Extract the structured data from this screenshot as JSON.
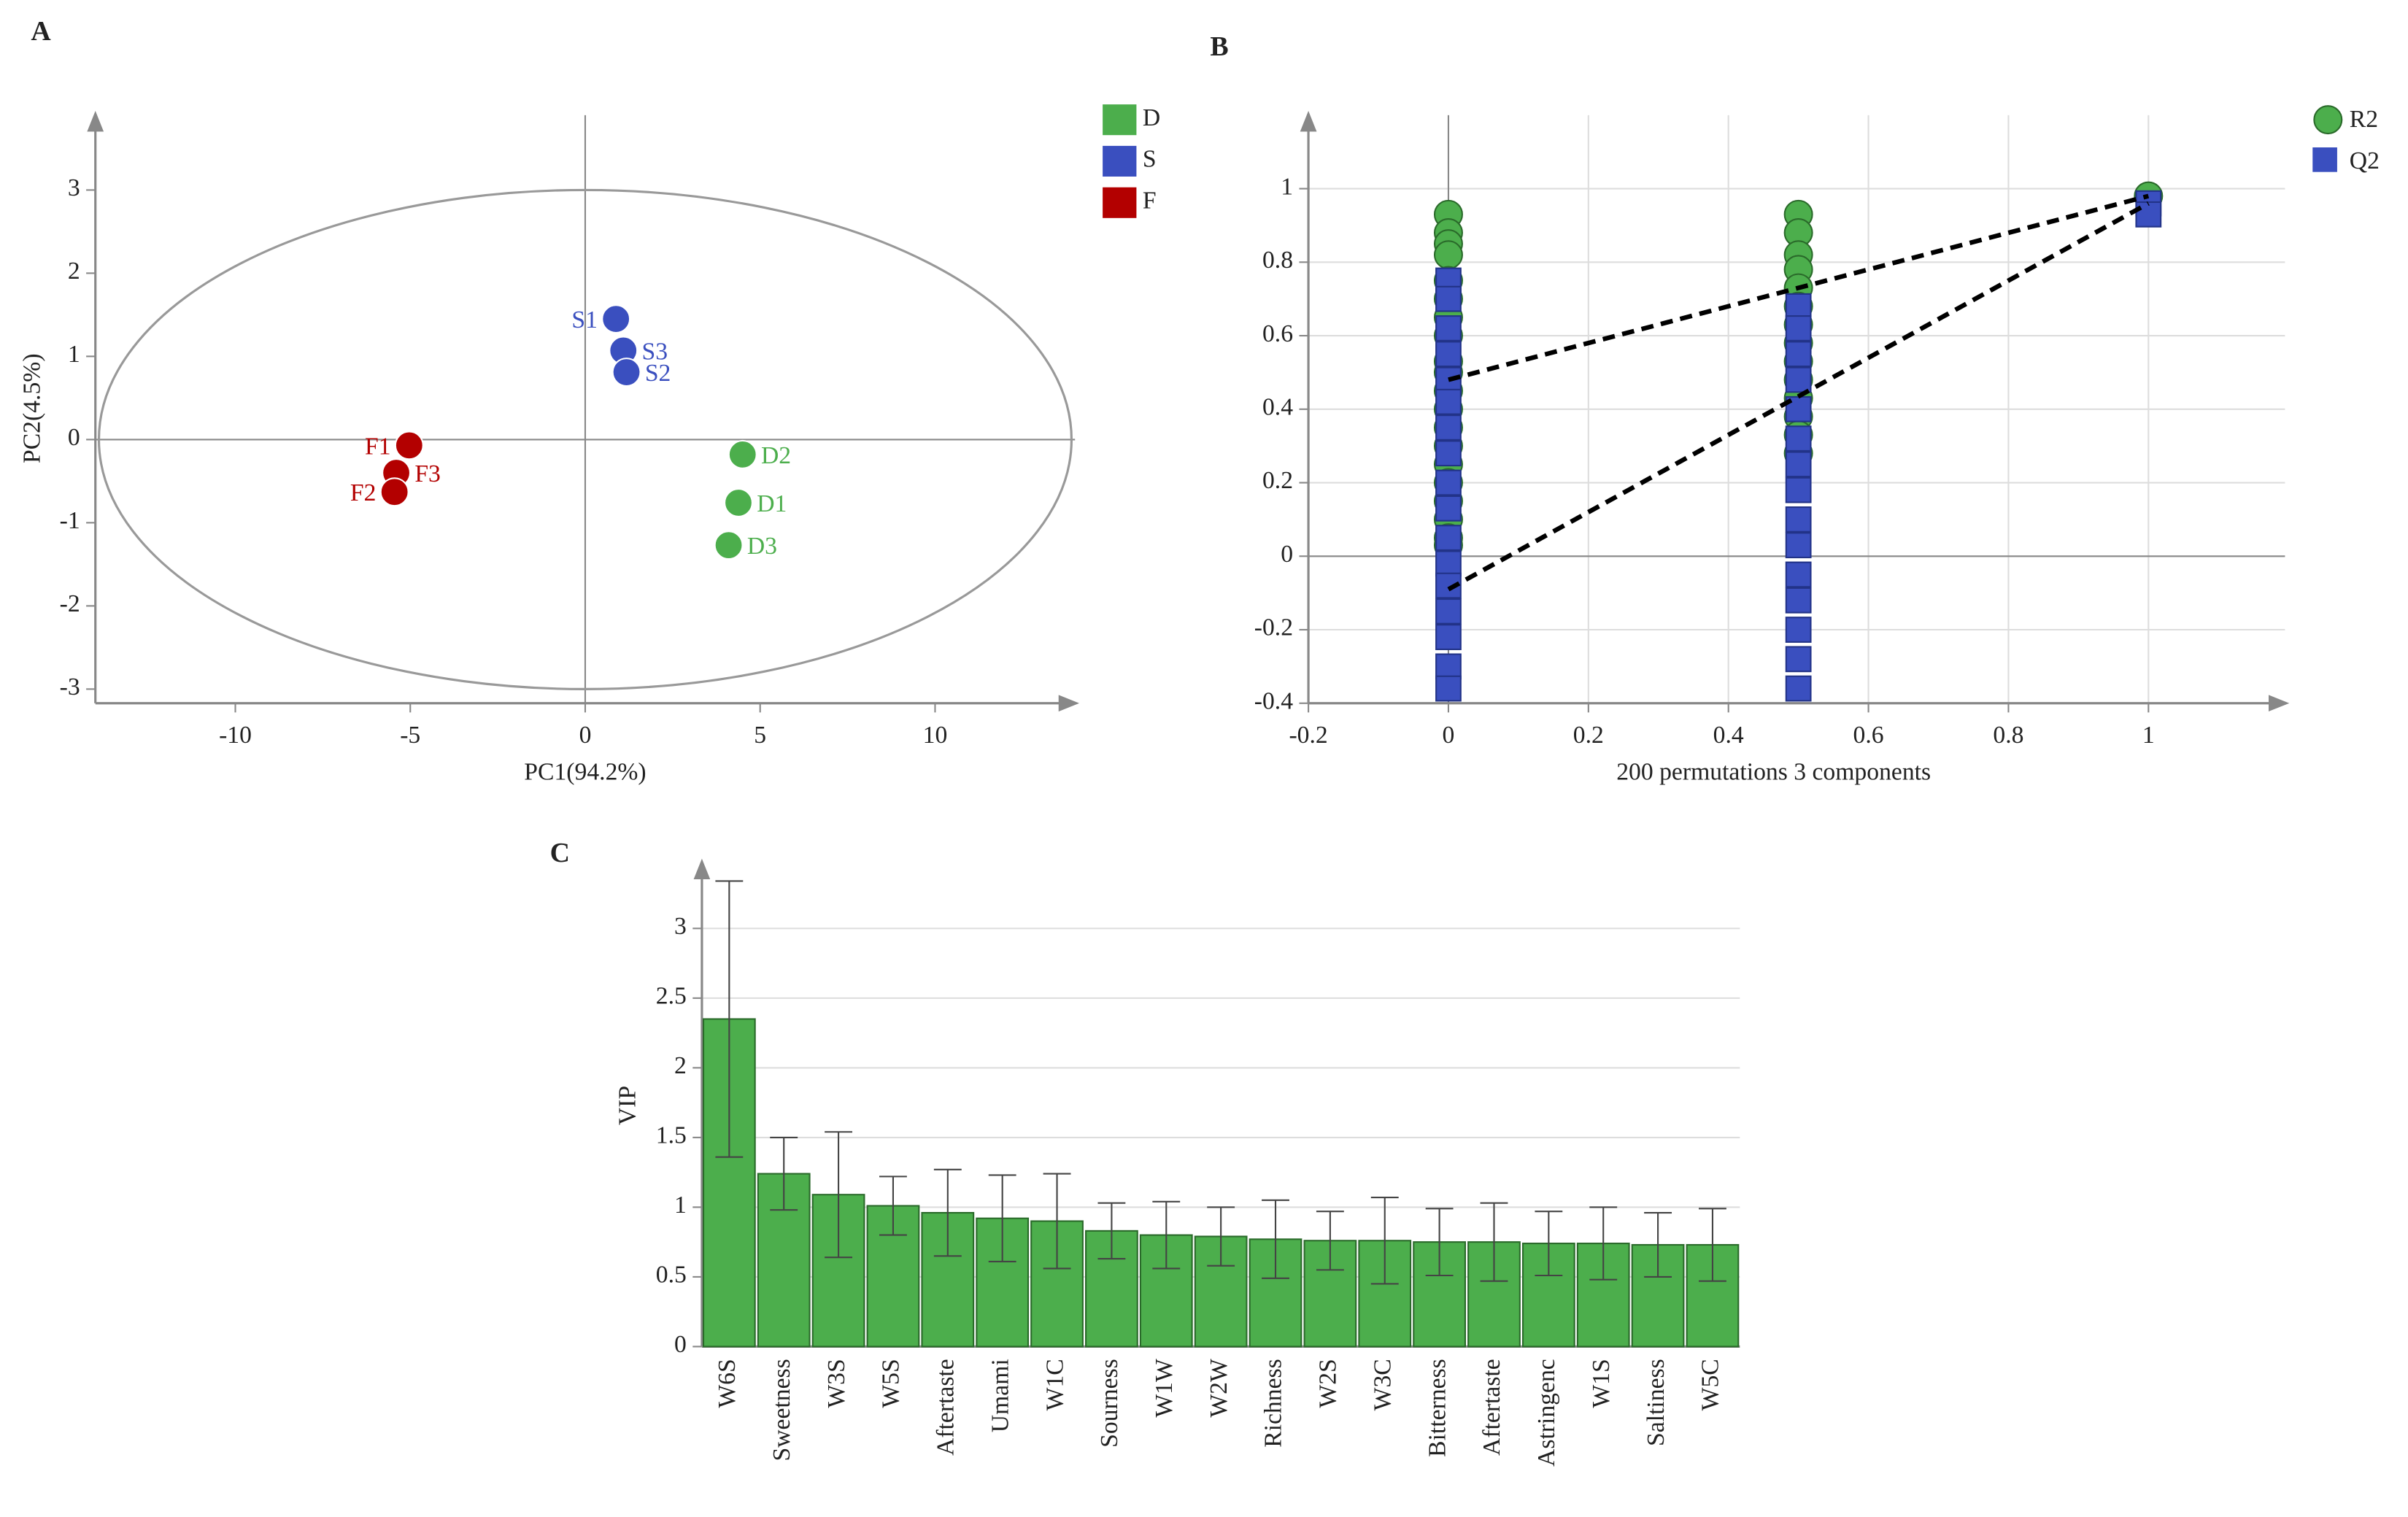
{
  "chart_data": [
    {
      "type": "scatter",
      "panel_label": "A",
      "x_label": "PC1(94.2%)",
      "y_label": "PC2(4.5%)",
      "xlim": [
        -14,
        14
      ],
      "ylim": [
        -3.17,
        3.9
      ],
      "xticks": [
        -10,
        -5,
        0,
        5,
        10
      ],
      "yticks": [
        -3,
        -2,
        -1,
        0,
        1,
        2,
        3
      ],
      "ellipse": [
        13.9,
        3
      ],
      "legend_position": "outside-top-right",
      "series": [
        {
          "name": "D",
          "color": "#4cae4c",
          "labels": [
            "D2",
            "D1",
            "D3"
          ],
          "x": [
            4.5,
            4.38,
            4.1
          ],
          "y": [
            -0.18,
            -0.76,
            -1.27
          ]
        },
        {
          "name": "S",
          "color": "#3a4fbf",
          "labels": [
            "S1",
            "S3",
            "S2"
          ],
          "x": [
            0.88,
            1.09,
            1.18
          ],
          "y": [
            1.45,
            1.07,
            0.81
          ]
        },
        {
          "name": "F",
          "color": "#b30000",
          "labels": [
            "F1",
            "F3",
            "F2"
          ],
          "x": [
            -5.03,
            -5.4,
            -5.45
          ],
          "y": [
            -0.07,
            -0.4,
            -0.63
          ]
        }
      ]
    },
    {
      "type": "permutation",
      "panel_label": "B",
      "x_label": "200 permutations 3 components",
      "xlim": [
        -0.2,
        1.195
      ],
      "ylim": [
        -0.4,
        1.2
      ],
      "xticks": [
        -0.2,
        0,
        0.2,
        0.4,
        0.6,
        0.8,
        1
      ],
      "yticks": [
        -0.4,
        -0.2,
        0,
        0.2,
        0.4,
        0.6,
        0.8,
        1
      ],
      "grid": true,
      "legend_position": "outside-top-right",
      "series": [
        {
          "name": "R2",
          "color": "#4cae4c",
          "marker": "circle",
          "x": [
            0,
            0,
            0,
            0,
            0,
            0,
            0,
            0,
            0,
            0,
            0,
            0,
            0,
            0,
            0,
            0,
            0,
            0,
            0,
            0,
            0.5,
            0.5,
            0.5,
            0.5,
            0.5,
            0.5,
            0.5,
            0.5,
            0.5,
            0.5,
            0.5,
            0.5,
            0.5,
            0.5,
            1
          ],
          "y": [
            0.93,
            0.88,
            0.85,
            0.82,
            0.75,
            0.7,
            0.65,
            0.6,
            0.53,
            0.5,
            0.45,
            0.4,
            0.35,
            0.3,
            0.25,
            0.2,
            0.15,
            0.1,
            0.05,
            0.03,
            0.93,
            0.88,
            0.82,
            0.78,
            0.73,
            0.68,
            0.63,
            0.58,
            0.53,
            0.48,
            0.43,
            0.38,
            0.33,
            0.28,
            0.98
          ],
          "fit": {
            "x": [
              0,
              1
            ],
            "y": [
              0.48,
              0.98
            ]
          }
        },
        {
          "name": "Q2",
          "color": "#3a4fbf",
          "marker": "square",
          "x": [
            0,
            0,
            0,
            0,
            0,
            0,
            0,
            0,
            0,
            0,
            0,
            0,
            0,
            0,
            0,
            0,
            0,
            0.5,
            0.5,
            0.5,
            0.5,
            0.5,
            0.5,
            0.5,
            0.5,
            0.5,
            0.5,
            0.5,
            0.5,
            0.5,
            0.5,
            0.5,
            1,
            1
          ],
          "y": [
            0.75,
            0.7,
            0.62,
            0.55,
            0.48,
            0.42,
            0.35,
            0.28,
            0.2,
            0.13,
            0.05,
            -0.02,
            -0.08,
            -0.15,
            -0.22,
            -0.3,
            -0.36,
            0.68,
            0.62,
            0.55,
            0.48,
            0.4,
            0.32,
            0.25,
            0.18,
            0.1,
            0.03,
            -0.05,
            -0.12,
            -0.2,
            -0.28,
            -0.36,
            0.96,
            0.93
          ],
          "fit": {
            "x": [
              0,
              1
            ],
            "y": [
              -0.09,
              0.96
            ]
          }
        }
      ]
    },
    {
      "type": "bar",
      "panel_label": "C",
      "y_label": "VIP",
      "color": "#4cae4c",
      "ylim": [
        0,
        3.47
      ],
      "yticks": [
        0,
        0.5,
        1,
        1.5,
        2,
        2.5,
        3
      ],
      "grid": true,
      "categories": [
        "W6S",
        "Sweetness",
        "W3S",
        "W5S",
        "Aftertaste",
        "Umami",
        "W1C",
        "Sourness",
        "W1W",
        "W2W",
        "Richness",
        "W2S",
        "W3C",
        "Bitterness",
        "Aftertaste",
        "Astringenc",
        "W1S",
        "Saltiness",
        "W5C"
      ],
      "values": [
        2.35,
        1.24,
        1.09,
        1.01,
        0.96,
        0.92,
        0.9,
        0.83,
        0.8,
        0.79,
        0.77,
        0.76,
        0.76,
        0.75,
        0.75,
        0.74,
        0.74,
        0.73,
        0.73
      ],
      "errors": [
        0.99,
        0.26,
        0.45,
        0.21,
        0.31,
        0.31,
        0.34,
        0.2,
        0.24,
        0.21,
        0.28,
        0.21,
        0.31,
        0.24,
        0.28,
        0.23,
        0.26,
        0.23,
        0.26
      ]
    }
  ]
}
